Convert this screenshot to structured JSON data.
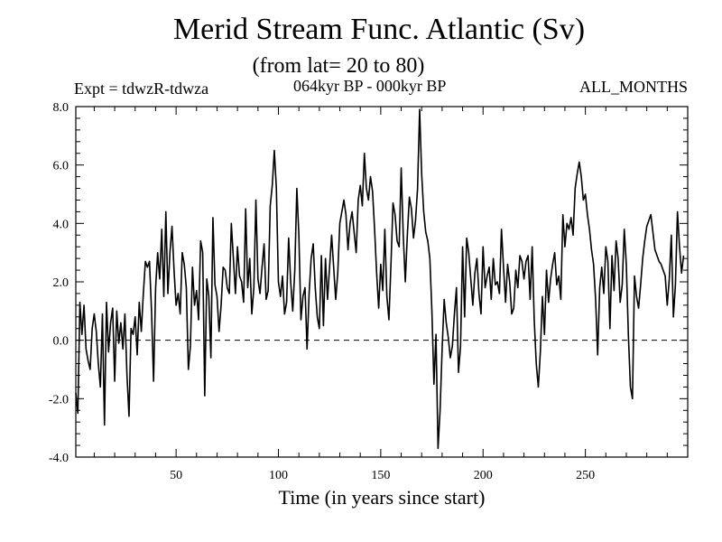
{
  "chart_data": {
    "type": "line",
    "title": "Merid Stream Func. Atlantic (Sv)",
    "subtitle": "(from lat= 20 to 80)",
    "experiment": "Expt = tdwzR-tdwza",
    "period": "064kyr BP - 000kyr BP",
    "months": "ALL_MONTHS",
    "xlabel": "Time (in years since start)",
    "ylabel": "",
    "xlim": [
      1,
      300
    ],
    "ylim": [
      -4.0,
      8.0
    ],
    "xticks": [
      50,
      100,
      150,
      200,
      250
    ],
    "xtick_labels": [
      "50",
      "100",
      "150",
      "200",
      "250"
    ],
    "yticks": [
      -4,
      -2,
      0,
      2,
      4,
      6,
      8
    ],
    "ytick_labels": [
      "-4.0",
      "-2.0",
      "0.0",
      "2.0",
      "4.0",
      "6.0",
      "8.0"
    ],
    "reference_line": 0.0,
    "series": [
      {
        "name": "Merid Stream Func. Atlantic",
        "x_start": 1,
        "x_step": 1,
        "values": [
          -1.8,
          -2.5,
          1.3,
          0.2,
          1.2,
          -0.3,
          -0.7,
          -1.0,
          0.4,
          0.9,
          0.3,
          -0.8,
          -1.6,
          0.9,
          -2.9,
          1.3,
          -0.4,
          0.6,
          1.1,
          -1.4,
          1.0,
          -0.1,
          0.6,
          -0.3,
          0.9,
          -1.2,
          -2.6,
          0.4,
          0.2,
          0.8,
          -0.5,
          1.3,
          0.3,
          1.6,
          2.7,
          2.5,
          2.7,
          1.0,
          -1.4,
          1.8,
          3.0,
          2.1,
          3.8,
          1.5,
          4.4,
          1.6,
          3.0,
          3.9,
          2.4,
          1.2,
          1.6,
          0.9,
          3.0,
          2.6,
          1.8,
          -1.0,
          -0.2,
          2.5,
          1.2,
          1.7,
          0.7,
          3.4,
          3.0,
          -1.9,
          2.1,
          1.5,
          -0.6,
          4.2,
          1.9,
          1.5,
          0.3,
          1.2,
          2.5,
          2.4,
          1.8,
          1.6,
          4.0,
          2.8,
          1.6,
          3.2,
          2.2,
          2.0,
          1.3,
          4.5,
          1.8,
          2.8,
          0.9,
          1.8,
          4.8,
          2.1,
          1.6,
          2.5,
          3.3,
          1.4,
          1.7,
          4.6,
          5.3,
          6.5,
          5.2,
          2.0,
          1.5,
          2.2,
          0.9,
          1.3,
          3.5,
          2.0,
          1.0,
          2.4,
          5.2,
          3.6,
          0.7,
          1.5,
          1.8,
          -0.3,
          1.6,
          2.8,
          3.3,
          1.8,
          0.8,
          0.4,
          2.9,
          0.5,
          2.8,
          1.4,
          2.5,
          3.6,
          2.5,
          1.4,
          2.3,
          4.0,
          4.4,
          4.8,
          4.3,
          3.1,
          4.0,
          4.4,
          3.7,
          3.0,
          4.8,
          5.3,
          4.6,
          6.4,
          5.2,
          4.8,
          5.6,
          5.1,
          3.8,
          2.3,
          1.1,
          2.6,
          1.7,
          3.8,
          1.5,
          0.7,
          2.6,
          4.7,
          4.3,
          3.4,
          3.2,
          5.9,
          3.6,
          2.0,
          3.6,
          4.9,
          4.5,
          3.5,
          4.1,
          5.2,
          7.9,
          5.7,
          4.4,
          3.7,
          3.4,
          2.8,
          1.0,
          -1.5,
          0.2,
          -3.7,
          -2.4,
          -0.3,
          1.4,
          0.6,
          0.1,
          -0.6,
          -0.2,
          0.9,
          1.8,
          -1.1,
          -0.2,
          3.2,
          0.8,
          3.5,
          3.0,
          2.1,
          1.2,
          2.3,
          2.8,
          1.6,
          0.9,
          3.2,
          1.8,
          2.2,
          2.5,
          1.4,
          2.8,
          1.9,
          2.0,
          1.6,
          3.8,
          2.5,
          1.3,
          2.6,
          2.0,
          0.9,
          1.1,
          2.4,
          1.8,
          2.9,
          2.7,
          2.1,
          2.7,
          2.9,
          1.4,
          3.2,
          0.7,
          -0.8,
          -1.6,
          -0.4,
          1.5,
          0.2,
          2.4,
          1.3,
          2.1,
          2.6,
          3.0,
          1.9,
          2.2,
          1.4,
          4.3,
          3.2,
          4.0,
          3.8,
          4.2,
          3.6,
          5.2,
          5.7,
          6.1,
          5.6,
          4.8,
          5.0,
          4.3,
          3.8,
          3.1,
          2.6,
          1.4,
          -0.5,
          1.8,
          2.5,
          1.6,
          3.2,
          2.7,
          0.4,
          2.9,
          1.7,
          3.4,
          2.8,
          1.3,
          1.9,
          3.8,
          2.6,
          0.2,
          -1.6,
          -2.0,
          2.2,
          1.5,
          1.1,
          1.9,
          2.8,
          3.4,
          3.9,
          4.1,
          4.3,
          3.7,
          3.1,
          2.9,
          2.7,
          2.6,
          2.4,
          2.2,
          1.2,
          2.1,
          3.6,
          0.8,
          1.9,
          4.4,
          3.2,
          2.3,
          2.9
        ]
      }
    ]
  }
}
